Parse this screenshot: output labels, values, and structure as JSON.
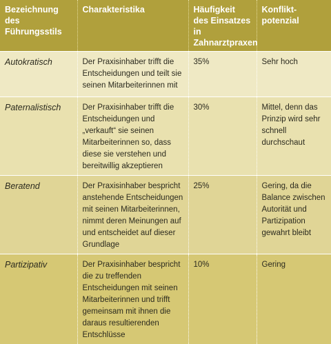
{
  "table": {
    "headers": [
      "Bezeichnung des Führungsstils",
      "Charakteristika",
      "Häufigkeit des Einsatzes in Zahnarztpraxen",
      "Konflikt-potenzial"
    ],
    "rows": [
      {
        "style": "Autokratisch",
        "description": "Der Praxisinhaber trifft die Entscheidungen und teilt sie seinen Mitarbeiterinnen mit",
        "frequency": "35%",
        "conflict": "Sehr hoch"
      },
      {
        "style": "Paternalistisch",
        "description": "Der Praxisinhaber trifft die Entscheidungen und „verkauft“ sie seinen Mitarbeiterinnen so, dass diese sie verstehen und bereitwillig akzeptieren",
        "frequency": "30%",
        "conflict": "Mittel, denn das Prinzip wird sehr schnell durchschaut"
      },
      {
        "style": "Beratend",
        "description": "Der Praxisinhaber bespricht anstehende Entscheidungen mit seinen Mitarbeiterinnen, nimmt deren Meinungen auf und entscheidet auf dieser Grundlage",
        "frequency": "25%",
        "conflict": "Gering, da die Balance zwischen Autorität und Partizipation gewahrt bleibt"
      },
      {
        "style": "Partizipativ",
        "description": "Der Praxisinhaber bespricht die zu treffenden Entscheidungen mit seinen Mitarbeiterinnen und trifft gemeinsam mit ihnen die daraus resultierenden Entschlüsse",
        "frequency": "10%",
        "conflict": "Gering"
      }
    ]
  }
}
